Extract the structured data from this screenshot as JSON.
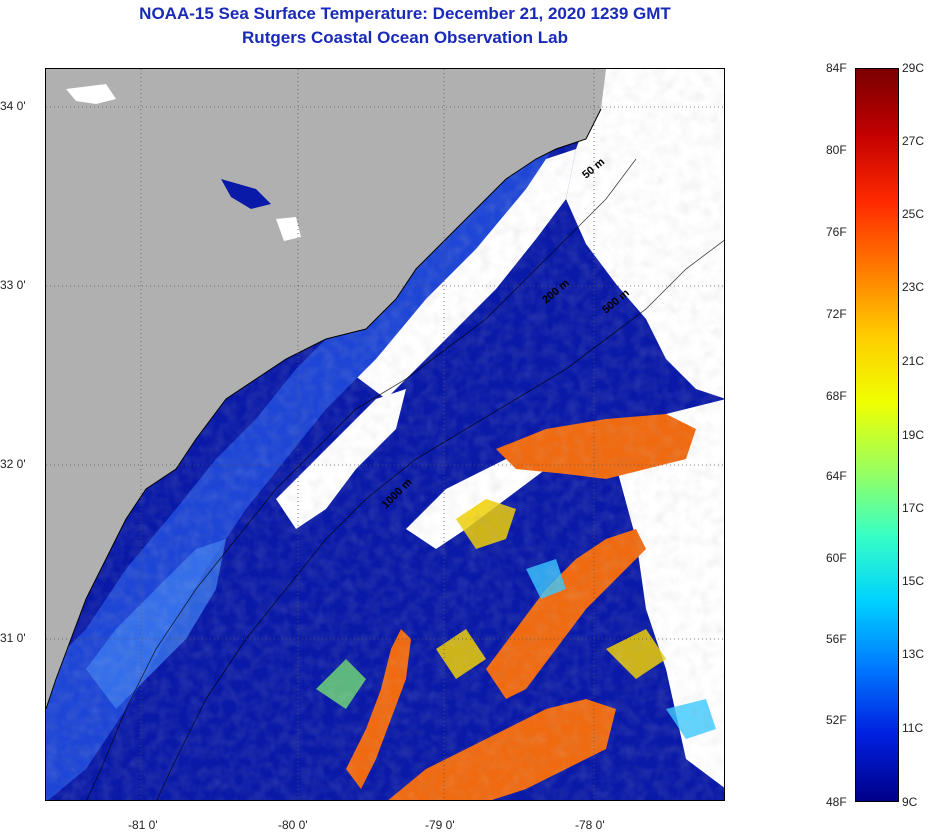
{
  "title": {
    "line1": "NOAA-15 Sea Surface Temperature:  December 21, 2020 1239 GMT",
    "line2": "Rutgers Coastal Ocean Observation Lab"
  },
  "map": {
    "colors": {
      "land": "#b0b0b0",
      "cloud": "#ffffff",
      "cold_water": "#0a1aa8",
      "shelf_water": "#1e46d6",
      "warm": "#f06a10",
      "coast": "#000000"
    },
    "lat_labels": [
      "34 0'",
      "33 0'",
      "32 0'",
      "31 0'"
    ],
    "lon_labels": [
      "-81 0'",
      "-80 0'",
      "-79 0'",
      "-78 0'"
    ],
    "isobath_labels": [
      "50 m",
      "200 m",
      "500 m",
      "1000 m"
    ]
  },
  "colorbar": {
    "fahrenheit_labels": [
      "84F",
      "80F",
      "76F",
      "72F",
      "68F",
      "64F",
      "60F",
      "56F",
      "52F",
      "48F"
    ],
    "celsius_labels": [
      "29C",
      "27C",
      "25C",
      "23C",
      "21C",
      "19C",
      "17C",
      "15C",
      "13C",
      "11C",
      "9C"
    ],
    "gradient_colors_top_to_bottom": [
      "#7a0000",
      "#c40000",
      "#ff2a00",
      "#ff7a00",
      "#ffcc00",
      "#f0ff00",
      "#9cff5a",
      "#38ffc4",
      "#00d2ff",
      "#0078ff",
      "#0020e0",
      "#000088"
    ]
  }
}
